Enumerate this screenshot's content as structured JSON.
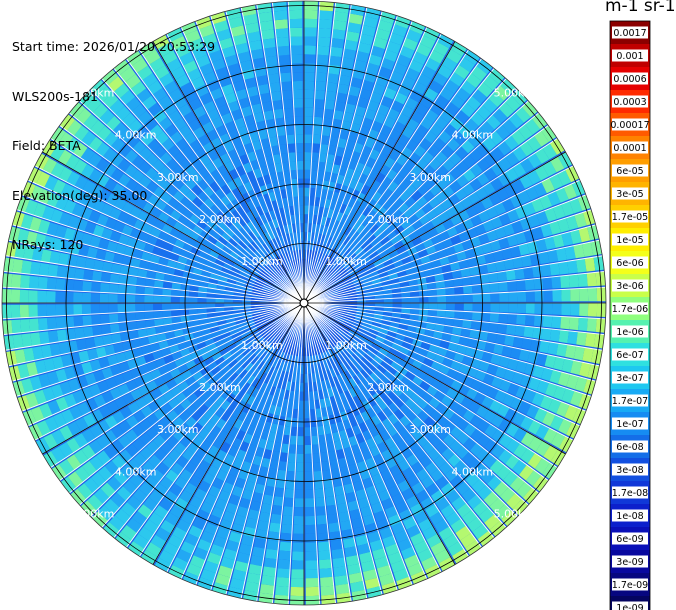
{
  "header": {
    "start_time": "Start time: 2026/01/20 20:53:29",
    "instrument": "WLS200s-181",
    "field": "Field: BETA",
    "elevation": "Elevation(deg): 35.00",
    "nrays": "NRays: 120"
  },
  "chart_data": {
    "type": "heatmap",
    "projection": "polar",
    "units_title": "m-1 sr-1",
    "range_rings": [
      "1.00km",
      "2.00km",
      "3.00km",
      "4.00km",
      "5.00km"
    ],
    "grid": true,
    "rays": 120,
    "colorbar": {
      "labels": [
        "0.0017",
        "0.001",
        "0.0006",
        "0.0003",
        "0.00017",
        "0.0001",
        "6e-05",
        "3e-05",
        "1.7e-05",
        "1e-05",
        "6e-06",
        "3e-06",
        "1.7e-06",
        "1e-06",
        "6e-07",
        "3e-07",
        "1.7e-07",
        "1e-07",
        "6e-08",
        "3e-08",
        "1.7e-08",
        "1e-08",
        "6e-09",
        "3e-09",
        "1.7e-09",
        "1e-09"
      ],
      "colors": [
        "#8b0000",
        "#c00000",
        "#e60000",
        "#ff2a00",
        "#ff5a00",
        "#ff8200",
        "#ff9e00",
        "#ffb400",
        "#ffd000",
        "#ffee00",
        "#f4ff1a",
        "#c9ff4a",
        "#8fff7e",
        "#55f2b0",
        "#2fe0e0",
        "#1ec8f0",
        "#18aaf5",
        "#168cf2",
        "#146ee8",
        "#1250e0",
        "#1038d8",
        "#0c20cc",
        "#0a10b8",
        "#08089e",
        "#060680",
        "#040460"
      ]
    },
    "dominant_values": {
      "near_range": "3e-08 to 1e-08",
      "mid_range": "6e-08 to 3e-08",
      "outer_ring": "1.7e-07 to 1e-06"
    }
  }
}
